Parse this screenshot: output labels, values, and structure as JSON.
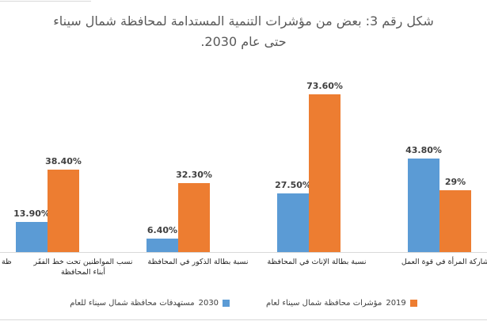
{
  "title": {
    "full_text": "شكل رقم 3: بعض من مؤشرات التنمية المستدامة لمحافظة شمال سيناء حتى عام 2030.",
    "lines": [
      "شكل رقم 3: بعض من مؤشرات التنمية المستدامة لمحافظة شمال سيناء",
      "حتى عام 2030."
    ]
  },
  "chart_data": {
    "type": "bar",
    "orientation": "vertical-grouped",
    "categories": [
      "نسب المواطنين تحت خط الفقَر أبناء المحافظة",
      "نسبة بطالة الذكور في المحافظة",
      "نسبة بطالة الإناث في المحافظة",
      "مشاركة المرأة في قوة العمل"
    ],
    "categories_order": "left-to-right as rendered",
    "series": [
      {
        "name": "مستهدفات محافظة شمال سيناء للعام 2030",
        "color": "#5B9BD5",
        "values": [
          13.9,
          6.4,
          27.5,
          43.8
        ],
        "value_labels": [
          "13.90%",
          "6.40%",
          "27.50%",
          "43.80%"
        ]
      },
      {
        "name": "مؤشرات محافظة شمال سيناء لعام 2019",
        "color": "#ED7D31",
        "values": [
          38.4,
          32.3,
          73.6,
          29
        ],
        "value_labels": [
          "38.40%",
          "32.30%",
          "73.60%",
          "29%"
        ]
      }
    ],
    "ylim": [
      0,
      80
    ],
    "grid": false,
    "y_axis_visible": false,
    "data_labels": "above bars",
    "legend_position": "bottom",
    "clipped_left_axis_label_fragment": "ظة"
  },
  "legend": {
    "entries": [
      {
        "text": "مستهدفات محافظة شمال سيناء للعام",
        "year": "2030",
        "color": "#5B9BD5",
        "marker": "square"
      },
      {
        "text": "مؤشرات محافظة شمال سيناء لعام",
        "year": "2019",
        "color": "#ED7D31",
        "marker": "square"
      }
    ]
  },
  "colors": {
    "series_2030_blue": "#5B9BD5",
    "series_2019_orange": "#ED7D31",
    "title_text": "#595959",
    "data_label_text": "#404040",
    "axis_label_text": "#262626",
    "axis_line": "#D9D9D9",
    "background": "#FFFFFF"
  }
}
